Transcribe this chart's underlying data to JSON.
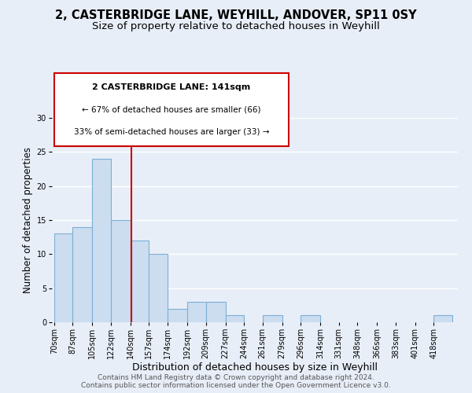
{
  "title1": "2, CASTERBRIDGE LANE, WEYHILL, ANDOVER, SP11 0SY",
  "title2": "Size of property relative to detached houses in Weyhill",
  "xlabel": "Distribution of detached houses by size in Weyhill",
  "ylabel": "Number of detached properties",
  "bin_labels": [
    "70sqm",
    "87sqm",
    "105sqm",
    "122sqm",
    "140sqm",
    "157sqm",
    "174sqm",
    "192sqm",
    "209sqm",
    "227sqm",
    "244sqm",
    "261sqm",
    "279sqm",
    "296sqm",
    "314sqm",
    "331sqm",
    "348sqm",
    "366sqm",
    "383sqm",
    "401sqm",
    "418sqm"
  ],
  "bin_edges": [
    70,
    87,
    105,
    122,
    140,
    157,
    174,
    192,
    209,
    227,
    244,
    261,
    279,
    296,
    314,
    331,
    348,
    366,
    383,
    401,
    418,
    435
  ],
  "bar_heights": [
    13,
    14,
    24,
    15,
    12,
    10,
    2,
    3,
    3,
    1,
    0,
    1,
    0,
    1,
    0,
    0,
    0,
    0,
    0,
    0,
    1
  ],
  "bar_color": "#ccddf0",
  "bar_edge_color": "#7bafd4",
  "vline_x": 141,
  "vline_color": "#cc0000",
  "ylim": [
    0,
    30
  ],
  "yticks": [
    0,
    5,
    10,
    15,
    20,
    25,
    30
  ],
  "annotation_title": "2 CASTERBRIDGE LANE: 141sqm",
  "annotation_line1": "← 67% of detached houses are smaller (66)",
  "annotation_line2": "33% of semi-detached houses are larger (33) →",
  "annotation_box_color": "#ffffff",
  "annotation_box_edge": "#cc0000",
  "footer1": "Contains HM Land Registry data © Crown copyright and database right 2024.",
  "footer2": "Contains public sector information licensed under the Open Government Licence v3.0.",
  "fig_bg_color": "#e8eef8",
  "plot_bg_color": "#e8eef8",
  "grid_color": "#ffffff",
  "title1_fontsize": 10.5,
  "title2_fontsize": 9.5,
  "xlabel_fontsize": 9,
  "ylabel_fontsize": 8.5,
  "tick_fontsize": 7,
  "footer_fontsize": 6.5,
  "ann_title_fontsize": 8,
  "ann_text_fontsize": 7.5
}
